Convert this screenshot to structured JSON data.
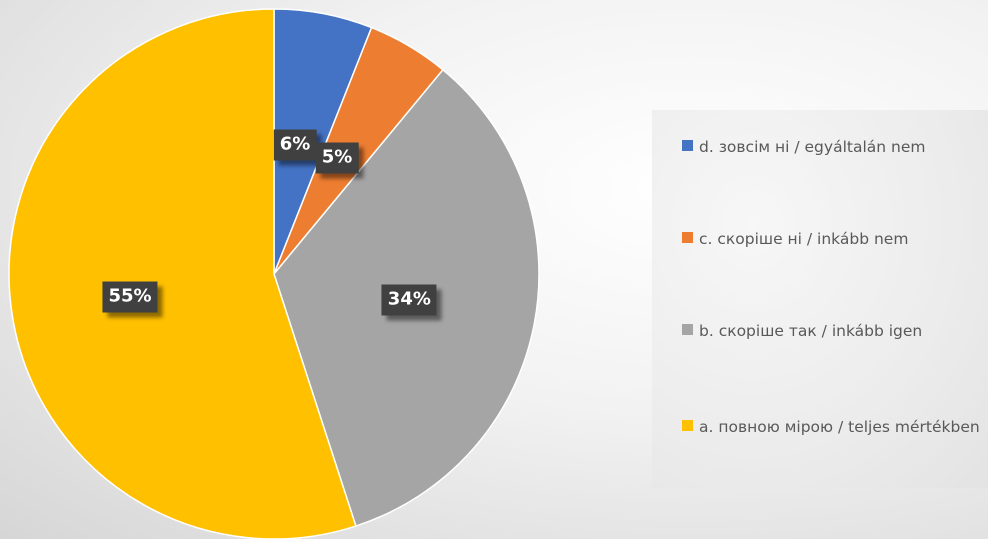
{
  "chart_data": {
    "type": "pie",
    "title": "",
    "slices": [
      {
        "label": "d. зовсім ні / egyáltalán nem",
        "value": 6,
        "display": "6%",
        "color": "#4472C4"
      },
      {
        "label": "c. скоріше ні / inkább nem",
        "value": 5,
        "display": "5%",
        "color": "#ED7D31"
      },
      {
        "label": "b. скоріше так / inkább igen",
        "value": 34,
        "display": "34%",
        "color": "#A5A5A5"
      },
      {
        "label": "a. повною мірою / teljes mértékben",
        "value": 55,
        "display": "55%",
        "color": "#FFC000"
      }
    ],
    "start_angle_deg": 0,
    "direction": "clockwise",
    "legend_position": "right",
    "data_labels": true
  },
  "legend": {
    "items": [
      {
        "label": "d. зовсім ні / egyáltalán nem",
        "color": "#4472C4"
      },
      {
        "label": "c. скоріше ні / inkább nem",
        "color": "#ED7D31"
      },
      {
        "label": "b. скоріше так / inkább igen",
        "color": "#A5A5A5"
      },
      {
        "label": "a. повною мірою / teljes mértékben",
        "color": "#FFC000"
      }
    ]
  }
}
